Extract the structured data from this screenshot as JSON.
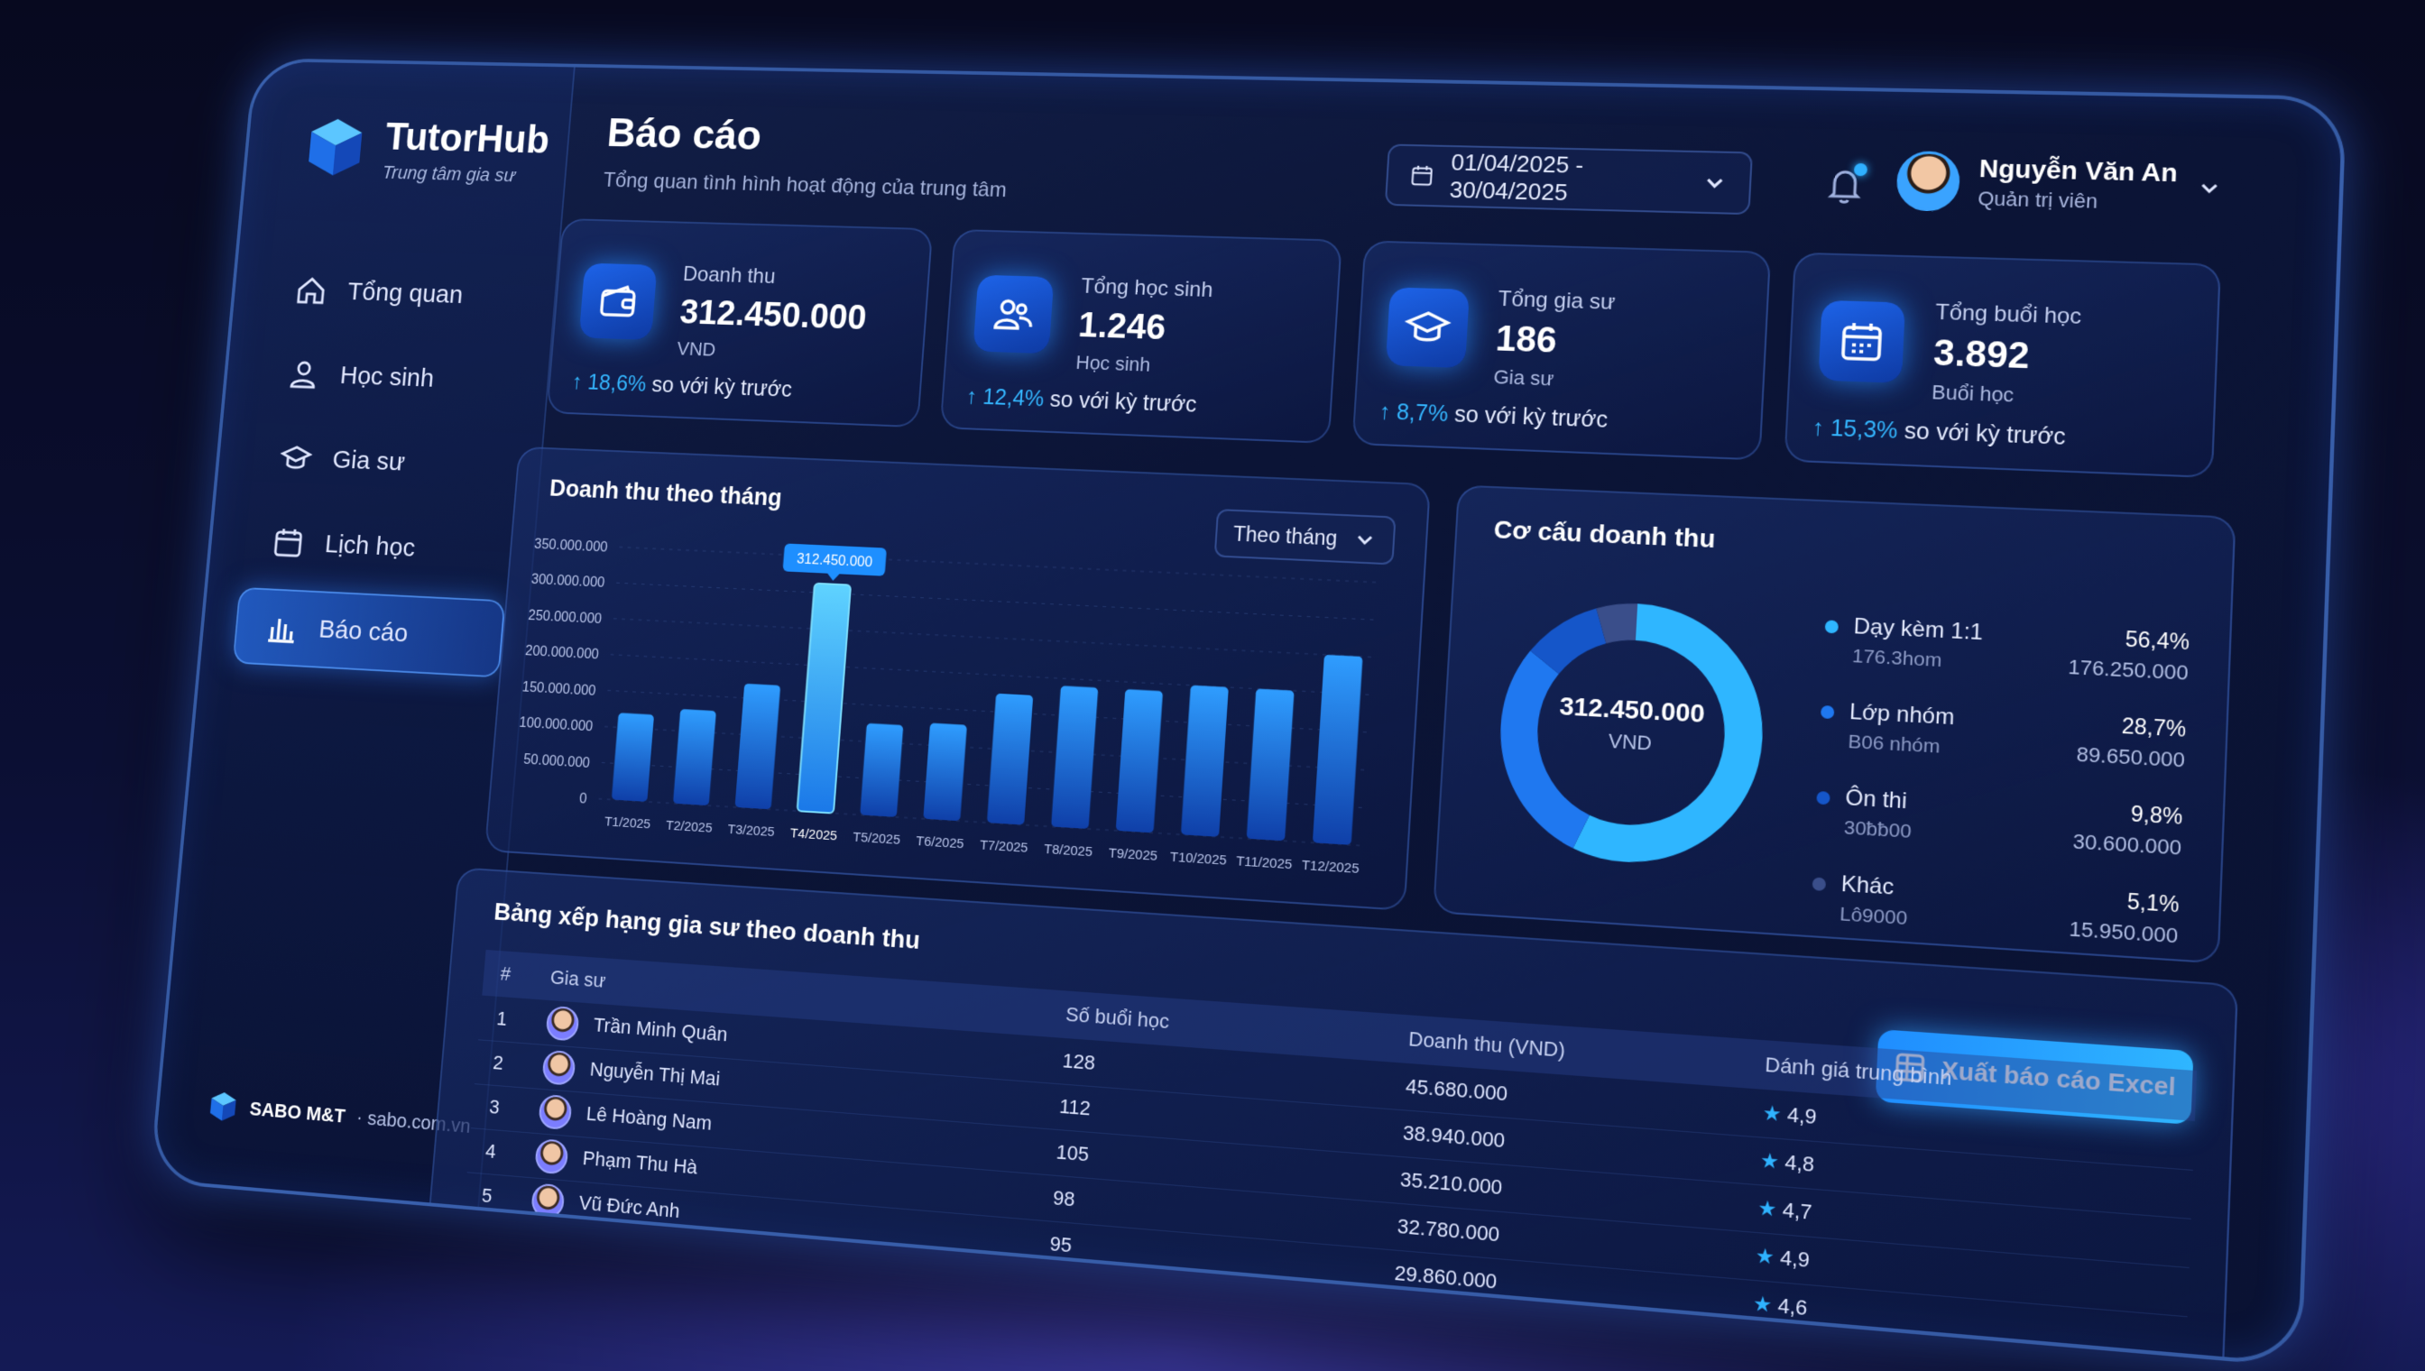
{
  "brand": {
    "name": "TutorHub",
    "tagline": "Trung tâm gia sư"
  },
  "nav": [
    {
      "label": "Tổng quan",
      "icon": "home-icon"
    },
    {
      "label": "Học sinh",
      "icon": "user-icon"
    },
    {
      "label": "Gia sư",
      "icon": "graduation-cap-icon"
    },
    {
      "label": "Lịch học",
      "icon": "calendar-icon"
    },
    {
      "label": "Báo cáo",
      "icon": "bar-chart-icon",
      "active": true
    }
  ],
  "footer": {
    "brand": "SABO M&T",
    "site": "· sabo.com.vn"
  },
  "header": {
    "title": "Báo cáo",
    "subtitle": "Tổng quan tình hình hoạt động của trung tâm",
    "date_range": "01/04/2025 - 30/04/2025",
    "user_name": "Nguyễn Văn An",
    "user_role": "Quản trị viên"
  },
  "stats": [
    {
      "label": "Doanh thu",
      "value": "312.450.000",
      "unit": "VND",
      "trend_pct": "↑ 18,6%",
      "trend_text": "so với kỳ trước",
      "icon": "wallet-icon"
    },
    {
      "label": "Tổng học sinh",
      "value": "1.246",
      "unit": "Học sinh",
      "trend_pct": "↑ 12,4%",
      "trend_text": "so với kỳ trước",
      "icon": "users-icon"
    },
    {
      "label": "Tổng gia sư",
      "value": "186",
      "unit": "Gia sư",
      "trend_pct": "↑ 8,7%",
      "trend_text": "so với kỳ trước",
      "icon": "graduation-cap-icon"
    },
    {
      "label": "Tổng buổi học",
      "value": "3.892",
      "unit": "Buổi học",
      "trend_pct": "↑ 15,3%",
      "trend_text": "so với kỳ trước",
      "icon": "calendar-icon"
    }
  ],
  "revenue_chart": {
    "title": "Doanh thu theo tháng",
    "period_select": "Theo tháng",
    "tooltip": "312.450.000"
  },
  "revenue_breakdown": {
    "title": "Cơ cấu doanh thu",
    "center_value": "312.450.000",
    "center_unit": "VND",
    "items": [
      {
        "name": "Dạy kèm 1:1",
        "sub": "176.3hom",
        "pct": "56,4%",
        "amount": "176.250.000"
      },
      {
        "name": "Lớp nhóm",
        "sub": "B06 nhóm",
        "pct": "28,7%",
        "amount": "89.650.000"
      },
      {
        "name": "Ôn thi",
        "sub": "30ƀƀ00",
        "pct": "9,8%",
        "amount": "30.600.000"
      },
      {
        "name": "Khác",
        "sub": "Lô9000",
        "pct": "5,1%",
        "amount": "15.950.000"
      }
    ]
  },
  "ranking": {
    "title": "Bảng xếp hạng gia sư theo doanh thu",
    "export_label": "Xuất báo cáo Excel",
    "columns": [
      "#",
      "Gia sư",
      "Số buổi học",
      "Doanh thu (VND)",
      "Dánh giá trung bình"
    ],
    "rows": [
      {
        "rank": "1",
        "name": "Trần Minh Quân",
        "sessions": "128",
        "revenue": "45.680.000",
        "rating": "4,9"
      },
      {
        "rank": "2",
        "name": "Nguyễn Thị Mai",
        "sessions": "112",
        "revenue": "38.940.000",
        "rating": "4,8"
      },
      {
        "rank": "3",
        "name": "Lê Hoàng Nam",
        "sessions": "105",
        "revenue": "35.210.000",
        "rating": "4,7"
      },
      {
        "rank": "4",
        "name": "Phạm Thu Hà",
        "sessions": "98",
        "revenue": "32.780.000",
        "rating": "4,9"
      },
      {
        "rank": "5",
        "name": "Vũ Đức Anh",
        "sessions": "95",
        "revenue": "29.860.000",
        "rating": "4,6"
      }
    ]
  },
  "chart_data": [
    {
      "type": "bar",
      "title": "Doanh thu theo tháng",
      "categories": [
        "T1/2025",
        "T2/2025",
        "T3/2025",
        "T4/2025",
        "T5/2025",
        "T6/2025",
        "T7/2025",
        "T8/2025",
        "T9/2025",
        "T10/2025",
        "T11/2025",
        "T12/2025"
      ],
      "values": [
        120000000,
        130000000,
        170000000,
        312450000,
        125000000,
        130000000,
        175000000,
        190000000,
        190000000,
        200000000,
        200000000,
        250000000
      ],
      "yticks": [
        "0",
        "50.000.000",
        "100.000.000",
        "150.000.000",
        "200.000.000",
        "250.000.000",
        "300.000.000",
        "350.000.000"
      ],
      "ylim": [
        0,
        350000000
      ],
      "highlight_index": 3,
      "grid": true
    },
    {
      "type": "pie",
      "title": "Cơ cấu doanh thu",
      "labels": [
        "Dạy kèm 1:1",
        "Lớp nhóm",
        "Ôn thi",
        "Khác"
      ],
      "values": [
        56.4,
        28.7,
        9.8,
        5.1
      ],
      "colors": [
        "#2fb6ff",
        "#1f78f0",
        "#1556c9",
        "#3a4e8a"
      ]
    }
  ]
}
